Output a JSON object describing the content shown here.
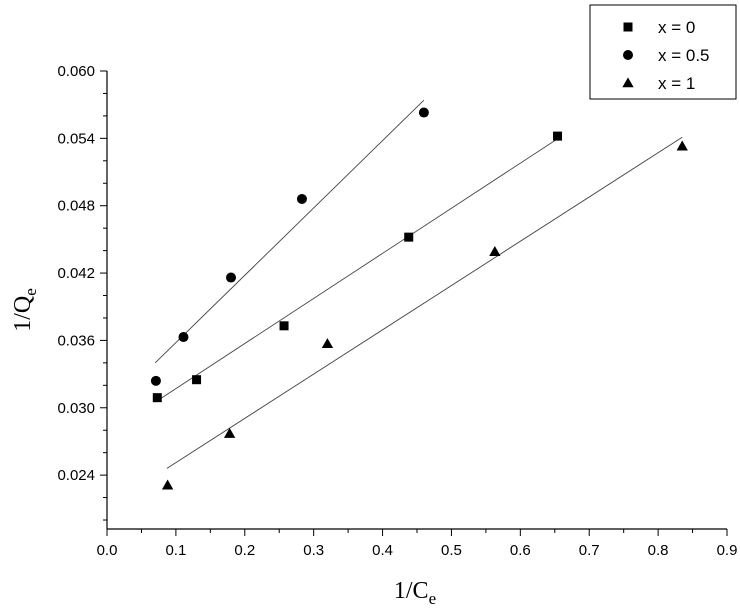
{
  "chart_data": {
    "type": "scatter",
    "title": "",
    "xlabel": {
      "main": "1/C",
      "sub": "e"
    },
    "ylabel": {
      "main": "1/Q",
      "sub": "e"
    },
    "xlim": [
      0.0,
      0.9
    ],
    "ylim": [
      0.0192,
      0.06
    ],
    "x_ticks": [
      0.0,
      0.1,
      0.2,
      0.3,
      0.4,
      0.5,
      0.6,
      0.7,
      0.8,
      0.9
    ],
    "x_tick_labels": [
      "0.0",
      "0.1",
      "0.2",
      "0.3",
      "0.4",
      "0.5",
      "0.6",
      "0.7",
      "0.8",
      "0.9"
    ],
    "y_ticks": [
      0.024,
      0.03,
      0.036,
      0.042,
      0.048,
      0.054,
      0.06
    ],
    "y_tick_labels": [
      "0.024",
      "0.030",
      "0.036",
      "0.042",
      "0.048",
      "0.054",
      "0.060"
    ],
    "grid": false,
    "legend_position": "top-right",
    "series": [
      {
        "name": "x = 0",
        "marker": "square",
        "x": [
          0.073,
          0.13,
          0.257,
          0.438,
          0.654
        ],
        "y": [
          0.0309,
          0.0325,
          0.0373,
          0.0452,
          0.0542
        ],
        "fit": {
          "x": [
            0.07,
            0.655
          ],
          "y": [
            0.0305,
            0.054
          ]
        }
      },
      {
        "name": "x = 0.5",
        "marker": "circle",
        "x": [
          0.071,
          0.111,
          0.18,
          0.283,
          0.46
        ],
        "y": [
          0.0324,
          0.0363,
          0.0416,
          0.0486,
          0.0563
        ],
        "fit": {
          "x": [
            0.07,
            0.46
          ],
          "y": [
            0.034,
            0.0574
          ]
        }
      },
      {
        "name": "x = 1",
        "marker": "triangle",
        "x": [
          0.088,
          0.178,
          0.32,
          0.563,
          0.835
        ],
        "y": [
          0.0231,
          0.0277,
          0.0357,
          0.0439,
          0.0533
        ],
        "fit": {
          "x": [
            0.087,
            0.835
          ],
          "y": [
            0.0246,
            0.0541
          ]
        }
      }
    ]
  }
}
